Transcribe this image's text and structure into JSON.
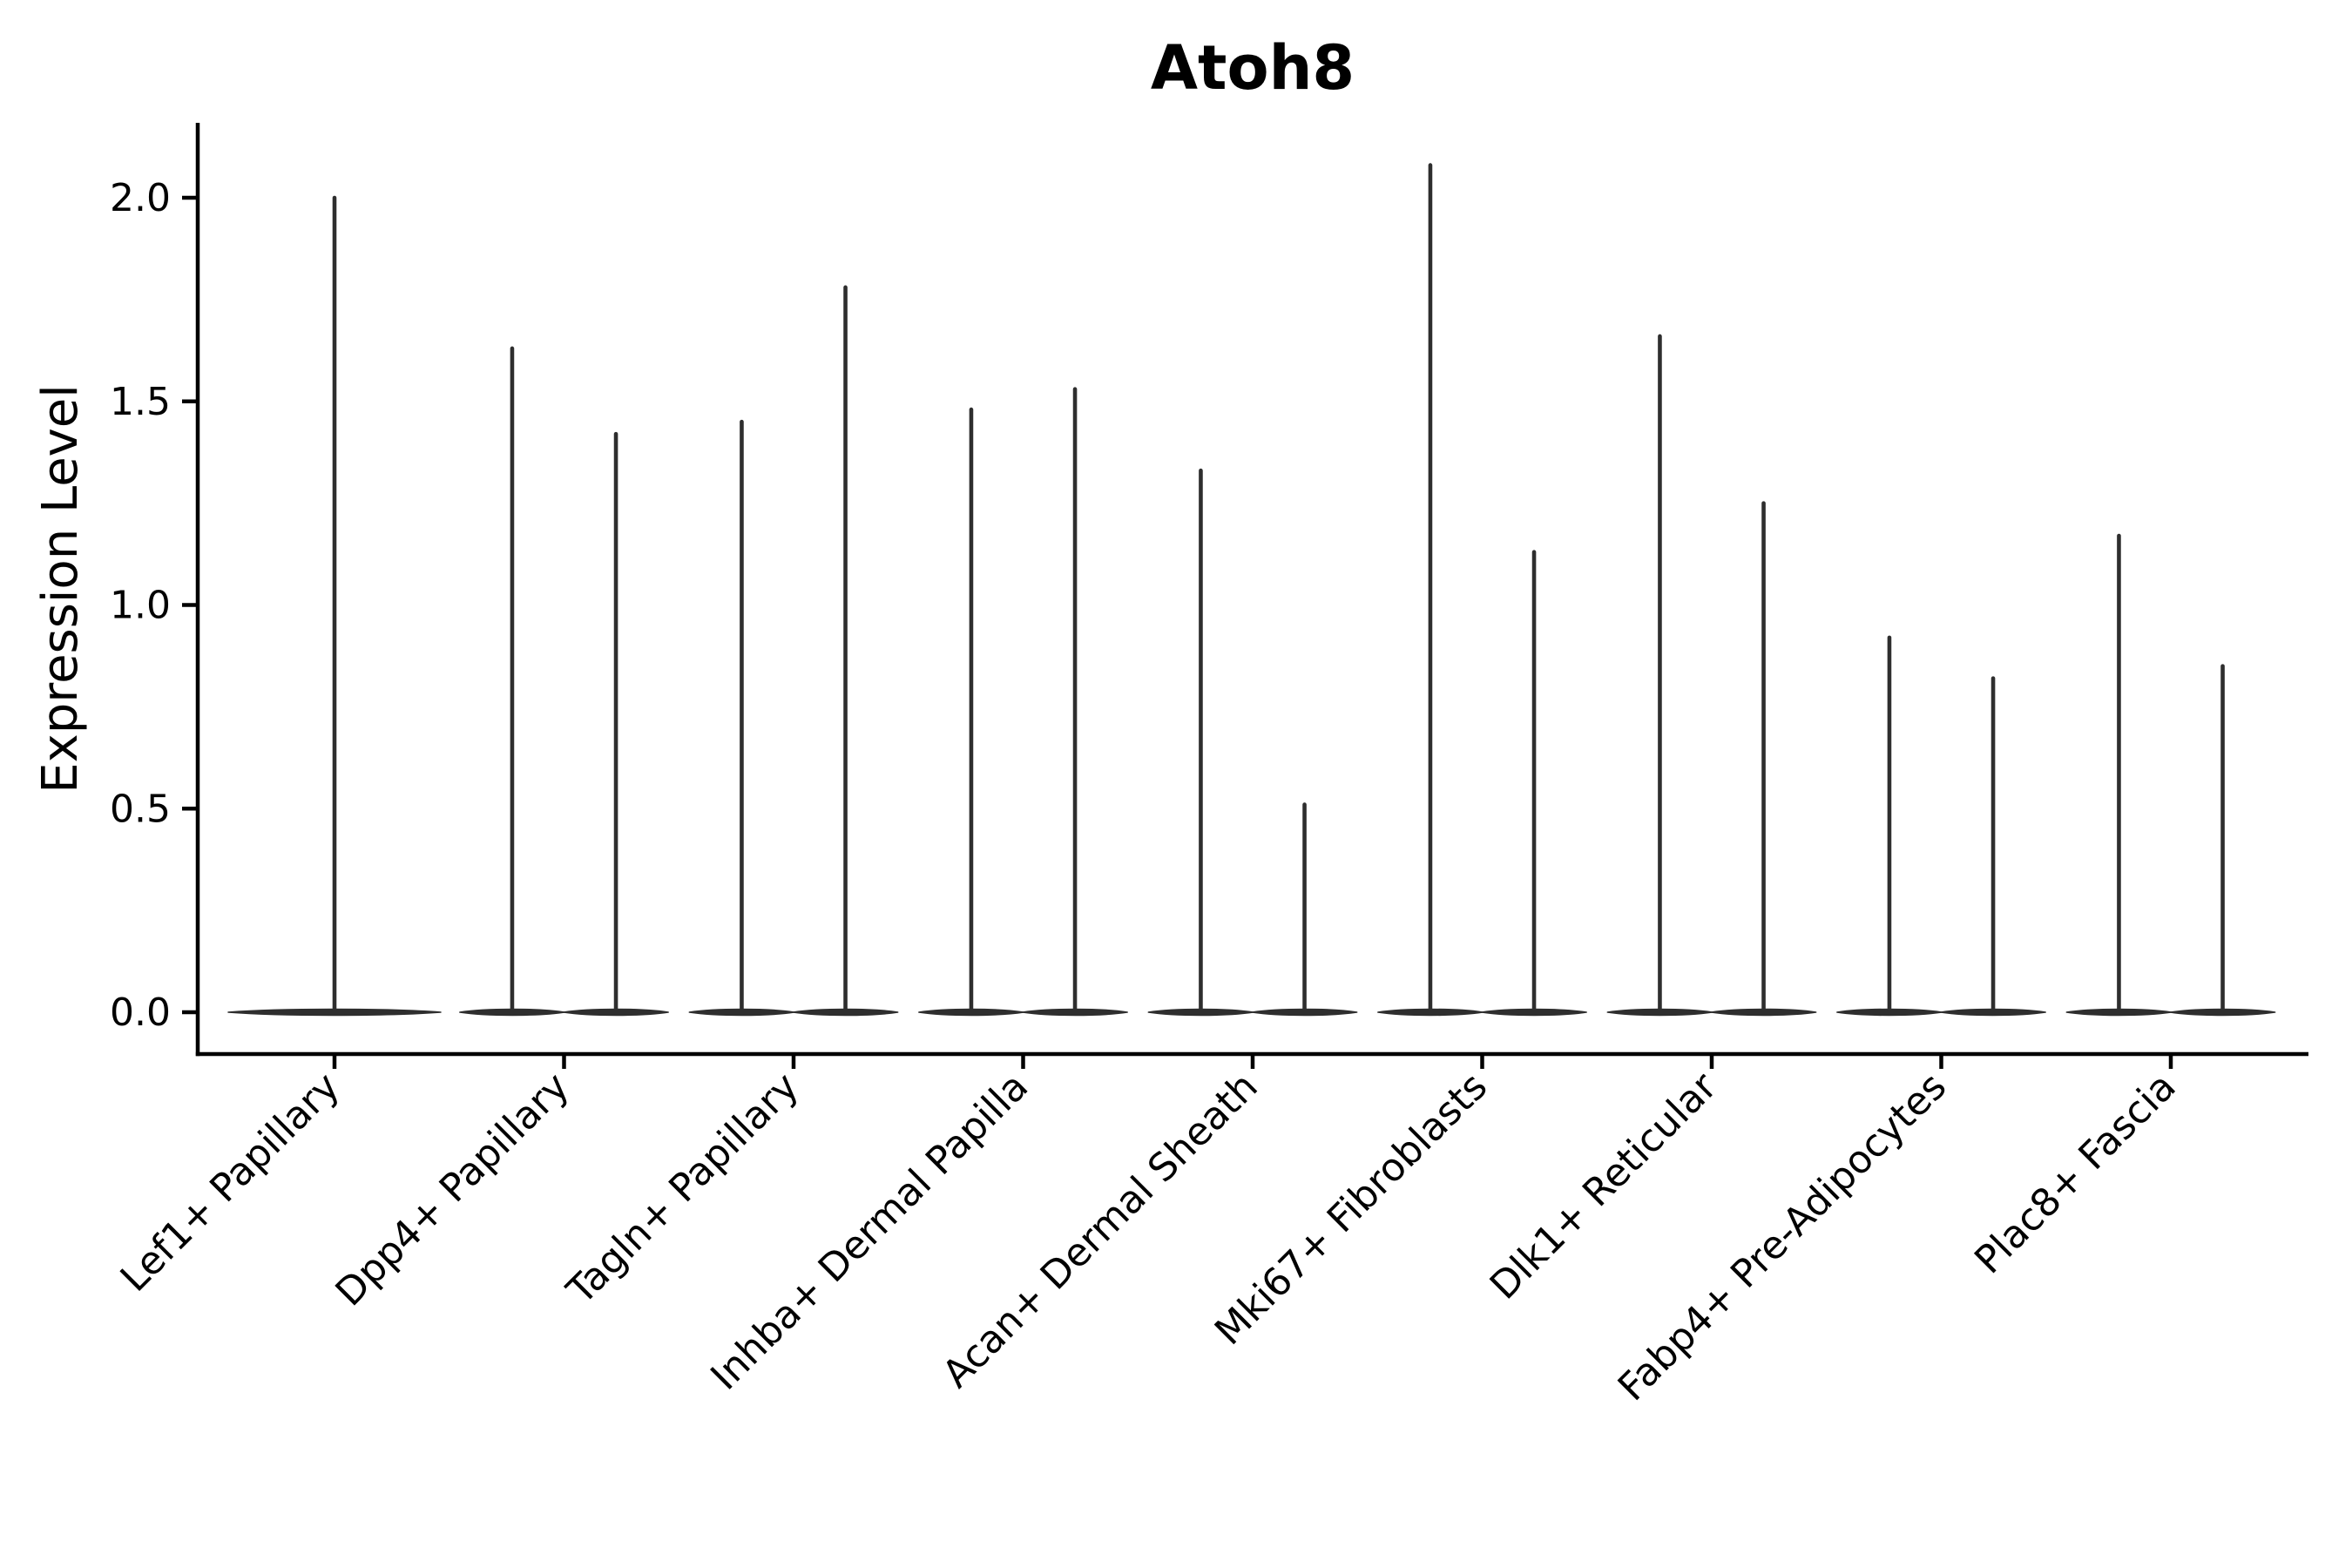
{
  "chart_data": {
    "type": "violin",
    "title": "Atoh8",
    "ylabel": "Expression Level",
    "xlabel": "",
    "categories": [
      "Lef1+ Papillary",
      "Dpp4+ Papillary",
      "Tagln+ Papillary",
      "Inhba+ Dermal Papilla",
      "Acan+ Dermal Sheath",
      "Mki67+ Fibroblasts",
      "Dlk1+ Reticular",
      "Fabp4+ Pre-Adipocytes",
      "Plac8+ Fascia"
    ],
    "yticks": [
      0.0,
      0.5,
      1.0,
      1.5,
      2.0
    ],
    "ytick_labels": [
      "0.0",
      "0.5",
      "1.0",
      "1.5",
      "2.0"
    ],
    "ylim": [
      -0.103,
      2.184
    ],
    "grid": false,
    "legend": "none",
    "violin_color": "#2e2e2e",
    "axis_color": "#000000",
    "description": "Violin plot of Atoh8 expression; each violin is a flat base at 0 with a thin spike up to its maximum expression value. Most categories contain two violins (two groups); the first category has a single full-width violin.",
    "series": [
      {
        "category": "Lef1+ Papillary",
        "violins": [
          {
            "offset": 0.0,
            "half_width": 0.463,
            "max": 2.0
          }
        ]
      },
      {
        "category": "Dpp4+ Papillary",
        "violins": [
          {
            "offset": -0.226,
            "half_width": 0.228,
            "max": 1.63
          },
          {
            "offset": 0.226,
            "half_width": 0.228,
            "max": 1.42
          }
        ]
      },
      {
        "category": "Tagln+ Papillary",
        "violins": [
          {
            "offset": -0.226,
            "half_width": 0.228,
            "max": 1.45
          },
          {
            "offset": 0.226,
            "half_width": 0.228,
            "max": 1.78
          }
        ]
      },
      {
        "category": "Inhba+ Dermal Papilla",
        "violins": [
          {
            "offset": -0.226,
            "half_width": 0.228,
            "max": 1.48
          },
          {
            "offset": 0.226,
            "half_width": 0.228,
            "max": 1.53
          }
        ]
      },
      {
        "category": "Acan+ Dermal Sheath",
        "violins": [
          {
            "offset": -0.226,
            "half_width": 0.228,
            "max": 1.33
          },
          {
            "offset": 0.226,
            "half_width": 0.228,
            "max": 0.51
          }
        ]
      },
      {
        "category": "Mki67+ Fibroblasts",
        "violins": [
          {
            "offset": -0.226,
            "half_width": 0.228,
            "max": 2.08
          },
          {
            "offset": 0.226,
            "half_width": 0.228,
            "max": 1.13
          }
        ]
      },
      {
        "category": "Dlk1+ Reticular",
        "violins": [
          {
            "offset": -0.226,
            "half_width": 0.228,
            "max": 1.66
          },
          {
            "offset": 0.226,
            "half_width": 0.228,
            "max": 1.25
          }
        ]
      },
      {
        "category": "Fabp4+ Pre-Adipocytes",
        "violins": [
          {
            "offset": -0.226,
            "half_width": 0.228,
            "max": 0.92
          },
          {
            "offset": 0.226,
            "half_width": 0.228,
            "max": 0.82
          }
        ]
      },
      {
        "category": "Plac8+ Fascia",
        "violins": [
          {
            "offset": -0.226,
            "half_width": 0.228,
            "max": 1.17
          },
          {
            "offset": 0.226,
            "half_width": 0.228,
            "max": 0.85
          }
        ]
      }
    ]
  }
}
